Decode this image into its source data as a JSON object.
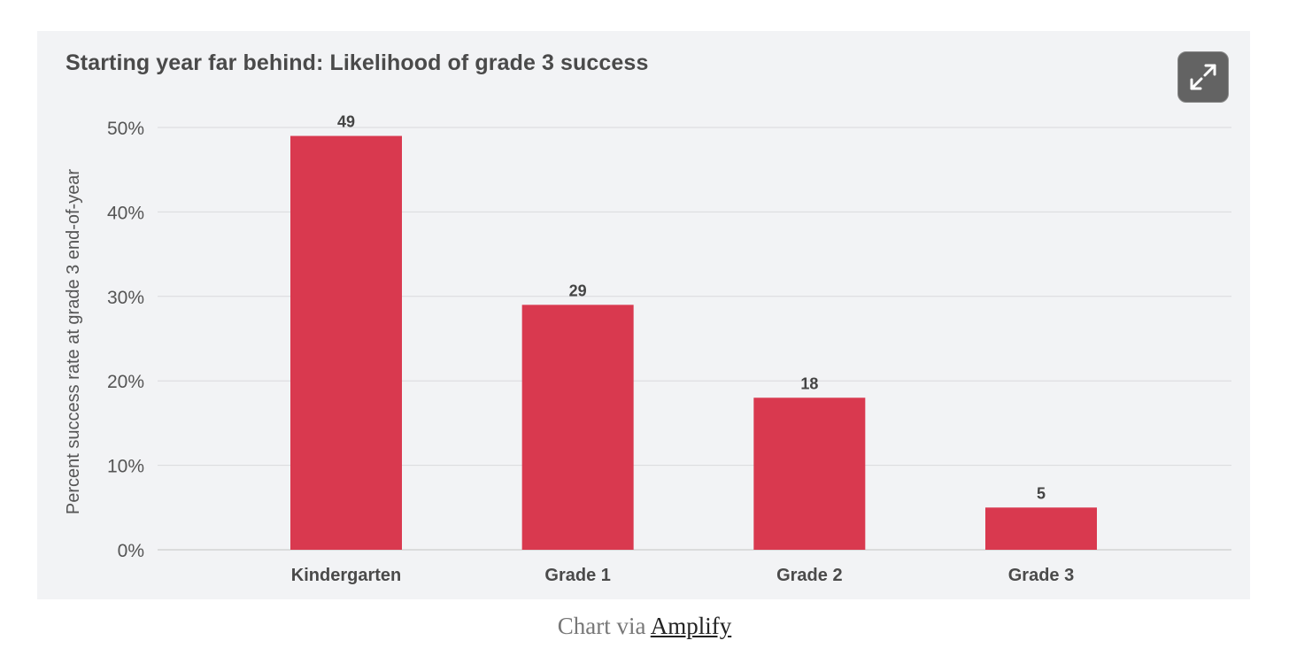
{
  "chart_data": {
    "type": "bar",
    "title": "Starting year far behind: Likelihood of grade 3 success",
    "ylabel": "Percent success rate at grade 3 end-of-year",
    "xlabel": "",
    "categories": [
      "Kindergarten",
      "Grade 1",
      "Grade 2",
      "Grade 3"
    ],
    "values": [
      49,
      29,
      18,
      5
    ],
    "ylim": [
      0,
      50
    ],
    "yticks": [
      0,
      10,
      20,
      30,
      40,
      50
    ],
    "ytick_labels": [
      "0%",
      "10%",
      "20%",
      "30%",
      "40%",
      "50%"
    ],
    "grid": true,
    "bar_color": "#d9394f"
  },
  "toolbar": {
    "expand_icon": "expand-icon"
  },
  "caption": {
    "prefix": "Chart via ",
    "link_text": "Amplify"
  }
}
